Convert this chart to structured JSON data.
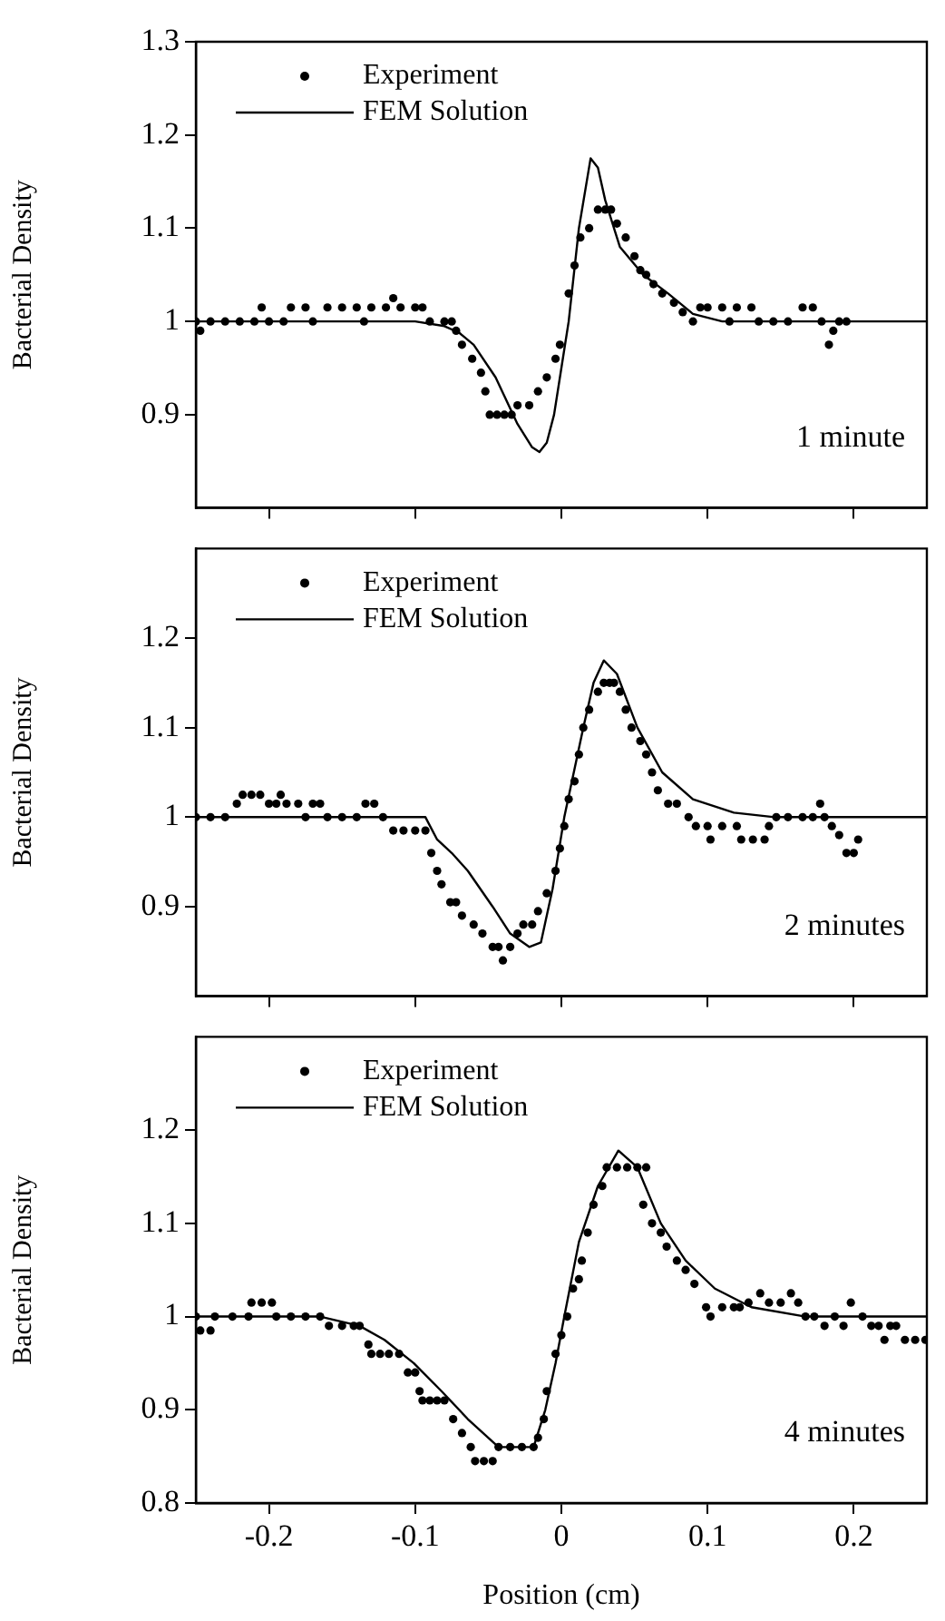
{
  "chart_data": [
    {
      "type": "scatter",
      "ylabel": "Bacterial Density",
      "xlim": [
        -0.25,
        0.25
      ],
      "xticks": [
        -0.2,
        -0.1,
        0,
        0.1,
        0.2
      ],
      "ylim": [
        0.8,
        1.3
      ],
      "yticks": [
        0.9,
        1,
        1.1,
        1.2,
        1.3
      ],
      "tick_labels": "y",
      "grid": false,
      "legend": "top left",
      "annotations": [
        "1 minute"
      ],
      "series": [
        {
          "name": "Experiment",
          "type": "scatter",
          "marker": "circle",
          "color": "#000000",
          "x": [
            -0.25,
            -0.247,
            -0.24,
            -0.23,
            -0.22,
            -0.21,
            -0.205,
            -0.2,
            -0.19,
            -0.185,
            -0.175,
            -0.17,
            -0.16,
            -0.15,
            -0.14,
            -0.135,
            -0.13,
            -0.12,
            -0.115,
            -0.11,
            -0.1,
            -0.095,
            -0.09,
            -0.08,
            -0.075,
            -0.072,
            -0.068,
            -0.061,
            -0.055,
            -0.052,
            -0.049,
            -0.044,
            -0.039,
            -0.034,
            -0.03,
            -0.022,
            -0.016,
            -0.01,
            -0.004,
            -0.001,
            0.005,
            0.009,
            0.013,
            0.019,
            0.025,
            0.03,
            0.034,
            0.038,
            0.044,
            0.05,
            0.054,
            0.058,
            0.063,
            0.069,
            0.077,
            0.083,
            0.09,
            0.095,
            0.1,
            0.11,
            0.115,
            0.12,
            0.13,
            0.135,
            0.145,
            0.155,
            0.165,
            0.172,
            0.178,
            0.183,
            0.186,
            0.19,
            0.195
          ],
          "values": [
            1.0,
            0.99,
            1.0,
            1.0,
            1.0,
            1.0,
            1.015,
            1.0,
            1.0,
            1.015,
            1.015,
            1.0,
            1.015,
            1.015,
            1.015,
            1.0,
            1.015,
            1.015,
            1.025,
            1.015,
            1.015,
            1.015,
            1.0,
            1.0,
            1.0,
            0.99,
            0.975,
            0.96,
            0.945,
            0.925,
            0.9,
            0.9,
            0.9,
            0.9,
            0.91,
            0.91,
            0.925,
            0.94,
            0.96,
            0.975,
            1.03,
            1.06,
            1.09,
            1.1,
            1.12,
            1.12,
            1.12,
            1.105,
            1.09,
            1.07,
            1.055,
            1.05,
            1.04,
            1.03,
            1.02,
            1.01,
            1.0,
            1.015,
            1.015,
            1.015,
            1.0,
            1.015,
            1.015,
            1.0,
            1.0,
            1.0,
            1.015,
            1.015,
            1.0,
            0.975,
            0.99,
            1.0,
            1.0
          ]
        },
        {
          "name": "FEM Solution",
          "type": "line",
          "marker": "none",
          "color": "#000000",
          "x": [
            -0.25,
            -0.1,
            -0.08,
            -0.07,
            -0.06,
            -0.045,
            -0.03,
            -0.02,
            -0.015,
            -0.01,
            -0.005,
            0,
            0.005,
            0.012,
            0.02,
            0.025,
            0.03,
            0.04,
            0.056,
            0.073,
            0.09,
            0.11,
            0.25
          ],
          "values": [
            1.0,
            1.0,
            0.995,
            0.988,
            0.975,
            0.94,
            0.89,
            0.865,
            0.86,
            0.87,
            0.9,
            0.95,
            1.0,
            1.1,
            1.175,
            1.165,
            1.13,
            1.08,
            1.05,
            1.03,
            1.008,
            1.0,
            1.0
          ]
        }
      ]
    },
    {
      "type": "scatter",
      "ylabel": "Bacterial Density",
      "xlim": [
        -0.25,
        0.25
      ],
      "xticks": [
        -0.2,
        -0.1,
        0,
        0.1,
        0.2
      ],
      "ylim": [
        0.8,
        1.3
      ],
      "yticks": [
        0.9,
        1,
        1.1,
        1.2
      ],
      "tick_labels": "y",
      "grid": false,
      "legend": "top left",
      "annotations": [
        "2 minutes"
      ],
      "series": [
        {
          "name": "Experiment",
          "type": "scatter",
          "marker": "circle",
          "color": "#000000",
          "x": [
            -0.25,
            -0.24,
            -0.23,
            -0.222,
            -0.218,
            -0.212,
            -0.206,
            -0.2,
            -0.195,
            -0.192,
            -0.188,
            -0.18,
            -0.175,
            -0.17,
            -0.165,
            -0.16,
            -0.15,
            -0.14,
            -0.134,
            -0.128,
            -0.122,
            -0.115,
            -0.108,
            -0.1,
            -0.093,
            -0.089,
            -0.085,
            -0.082,
            -0.076,
            -0.072,
            -0.068,
            -0.06,
            -0.054,
            -0.047,
            -0.043,
            -0.04,
            -0.035,
            -0.03,
            -0.026,
            -0.02,
            -0.016,
            -0.01,
            -0.004,
            -0.001,
            0.002,
            0.005,
            0.009,
            0.012,
            0.015,
            0.019,
            0.025,
            0.029,
            0.033,
            0.036,
            0.04,
            0.044,
            0.048,
            0.054,
            0.058,
            0.062,
            0.066,
            0.073,
            0.079,
            0.087,
            0.092,
            0.1,
            0.102,
            0.11,
            0.12,
            0.123,
            0.131,
            0.139,
            0.142,
            0.147,
            0.155,
            0.165,
            0.172,
            0.177,
            0.18,
            0.185,
            0.19,
            0.195,
            0.2,
            0.203
          ],
          "values": [
            1.0,
            1.0,
            1.0,
            1.015,
            1.025,
            1.025,
            1.025,
            1.015,
            1.015,
            1.025,
            1.015,
            1.015,
            1.0,
            1.015,
            1.015,
            1.0,
            1.0,
            1.0,
            1.015,
            1.015,
            1.0,
            0.985,
            0.985,
            0.985,
            0.985,
            0.96,
            0.94,
            0.925,
            0.905,
            0.905,
            0.89,
            0.88,
            0.87,
            0.855,
            0.855,
            0.84,
            0.855,
            0.87,
            0.88,
            0.88,
            0.895,
            0.915,
            0.94,
            0.965,
            0.99,
            1.02,
            1.04,
            1.07,
            1.1,
            1.12,
            1.14,
            1.15,
            1.15,
            1.15,
            1.14,
            1.12,
            1.1,
            1.085,
            1.07,
            1.05,
            1.03,
            1.015,
            1.015,
            1.0,
            0.99,
            0.99,
            0.975,
            0.99,
            0.99,
            0.975,
            0.975,
            0.975,
            0.99,
            1.0,
            1.0,
            1.0,
            1.0,
            1.015,
            1.0,
            0.99,
            0.98,
            0.96,
            0.96,
            0.975
          ]
        },
        {
          "name": "FEM Solution",
          "type": "line",
          "marker": "none",
          "color": "#000000",
          "x": [
            -0.25,
            -0.093,
            -0.085,
            -0.075,
            -0.064,
            -0.047,
            -0.035,
            -0.022,
            -0.014,
            -0.006,
            0.002,
            0.015,
            0.022,
            0.029,
            0.038,
            0.052,
            0.069,
            0.09,
            0.118,
            0.146,
            0.25
          ],
          "values": [
            1.0,
            1.0,
            0.975,
            0.96,
            0.94,
            0.9,
            0.87,
            0.855,
            0.86,
            0.92,
            1.0,
            1.1,
            1.15,
            1.175,
            1.16,
            1.1,
            1.05,
            1.02,
            1.005,
            1.0,
            1.0
          ]
        }
      ]
    },
    {
      "type": "scatter",
      "xlabel": "Position (cm)",
      "ylabel": "Bacterial Density",
      "xlim": [
        -0.25,
        0.25
      ],
      "xticks": [
        -0.2,
        -0.1,
        0,
        0.1,
        0.2
      ],
      "ylim": [
        0.8,
        1.3
      ],
      "yticks": [
        0.8,
        0.9,
        1,
        1.1,
        1.2
      ],
      "grid": false,
      "legend": "top left",
      "annotations": [
        "4 minutes"
      ],
      "series": [
        {
          "name": "Experiment",
          "type": "scatter",
          "marker": "circle",
          "color": "#000000",
          "x": [
            -0.25,
            -0.247,
            -0.24,
            -0.237,
            -0.225,
            -0.214,
            -0.212,
            -0.205,
            -0.198,
            -0.195,
            -0.185,
            -0.175,
            -0.165,
            -0.159,
            -0.15,
            -0.142,
            -0.138,
            -0.132,
            -0.13,
            -0.124,
            -0.118,
            -0.111,
            -0.105,
            -0.1,
            -0.097,
            -0.095,
            -0.09,
            -0.085,
            -0.08,
            -0.074,
            -0.068,
            -0.062,
            -0.059,
            -0.053,
            -0.047,
            -0.043,
            -0.035,
            -0.027,
            -0.019,
            -0.016,
            -0.012,
            -0.01,
            -0.004,
            0,
            0.004,
            0.008,
            0.012,
            0.014,
            0.018,
            0.022,
            0.028,
            0.031,
            0.038,
            0.045,
            0.052,
            0.058,
            0.056,
            0.062,
            0.068,
            0.072,
            0.079,
            0.085,
            0.091,
            0.099,
            0.102,
            0.11,
            0.118,
            0.122,
            0.128,
            0.136,
            0.142,
            0.15,
            0.157,
            0.162,
            0.167,
            0.173,
            0.18,
            0.187,
            0.193,
            0.198,
            0.206,
            0.212,
            0.217,
            0.221,
            0.225,
            0.229,
            0.235,
            0.242,
            0.249
          ],
          "values": [
            1.0,
            0.985,
            0.985,
            1.0,
            1.0,
            1.0,
            1.015,
            1.015,
            1.015,
            1.0,
            1.0,
            1.0,
            1.0,
            0.99,
            0.99,
            0.99,
            0.99,
            0.97,
            0.96,
            0.96,
            0.96,
            0.96,
            0.94,
            0.94,
            0.92,
            0.91,
            0.91,
            0.91,
            0.91,
            0.89,
            0.875,
            0.86,
            0.845,
            0.845,
            0.845,
            0.86,
            0.86,
            0.86,
            0.86,
            0.87,
            0.89,
            0.92,
            0.96,
            0.98,
            1.0,
            1.03,
            1.04,
            1.06,
            1.09,
            1.12,
            1.14,
            1.16,
            1.16,
            1.16,
            1.16,
            1.16,
            1.12,
            1.1,
            1.09,
            1.075,
            1.06,
            1.05,
            1.035,
            1.01,
            1.0,
            1.01,
            1.01,
            1.01,
            1.015,
            1.025,
            1.015,
            1.015,
            1.025,
            1.015,
            1.0,
            1.0,
            0.99,
            1.0,
            0.99,
            1.015,
            1.0,
            0.99,
            0.99,
            0.975,
            0.99,
            0.99,
            0.975,
            0.975,
            0.975
          ]
        },
        {
          "name": "FEM Solution",
          "type": "line",
          "marker": "none",
          "color": "#000000",
          "x": [
            -0.25,
            -0.165,
            -0.138,
            -0.121,
            -0.101,
            -0.082,
            -0.064,
            -0.043,
            -0.019,
            -0.011,
            -0.004,
            0.002,
            0.012,
            0.025,
            0.039,
            0.052,
            0.068,
            0.085,
            0.105,
            0.13,
            0.167,
            0.25
          ],
          "values": [
            1.0,
            1.0,
            0.99,
            0.975,
            0.95,
            0.92,
            0.89,
            0.86,
            0.86,
            0.9,
            0.95,
            1.0,
            1.08,
            1.14,
            1.178,
            1.16,
            1.1,
            1.06,
            1.03,
            1.01,
            1.0,
            1.0
          ]
        }
      ]
    }
  ]
}
